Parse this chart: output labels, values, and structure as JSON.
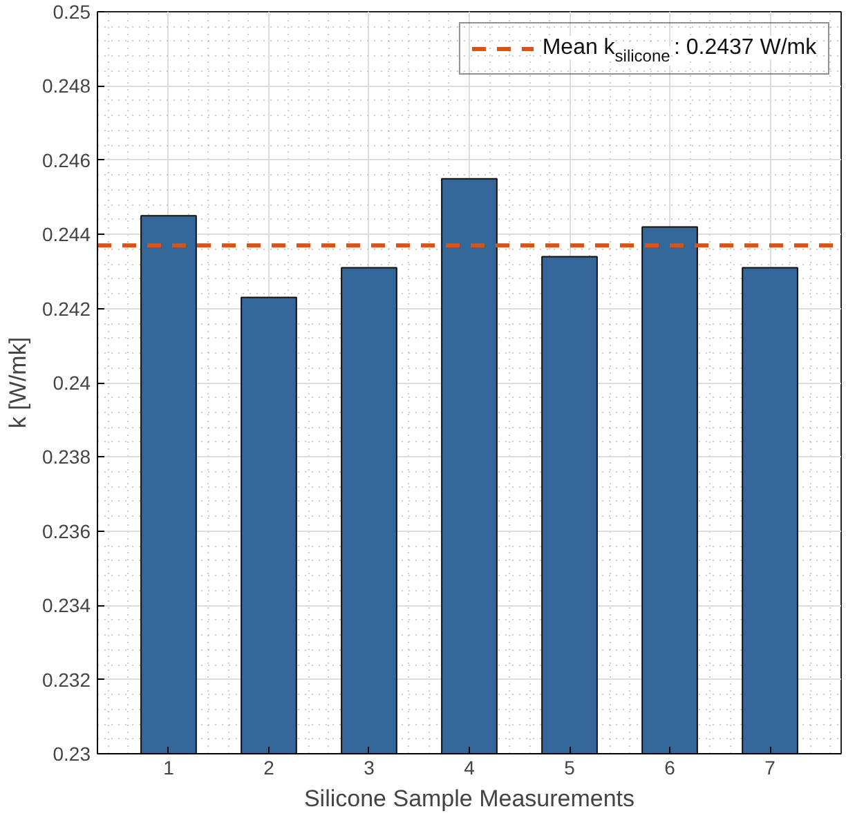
{
  "chart_data": {
    "type": "bar",
    "xlabel": "Silicone Sample Measurements",
    "ylabel": "k [W/mk]",
    "categories": [
      "1",
      "2",
      "3",
      "4",
      "5",
      "6",
      "7"
    ],
    "values": [
      0.2445,
      0.2423,
      0.2431,
      0.2455,
      0.2434,
      0.2442,
      0.2431
    ],
    "color": "#336699",
    "ylim": [
      0.23,
      0.25
    ],
    "yticks": [
      0.23,
      0.232,
      0.234,
      0.236,
      0.238,
      0.24,
      0.242,
      0.244,
      0.246,
      0.248,
      0.25
    ],
    "ref_lines": [
      {
        "axis": "y",
        "value": 0.2437,
        "label": "Mean k$_{silicone}$: 0.2437 W/mk",
        "color": "#d95319",
        "line_style": "dashed"
      }
    ],
    "grid": true,
    "legend": "top right"
  }
}
